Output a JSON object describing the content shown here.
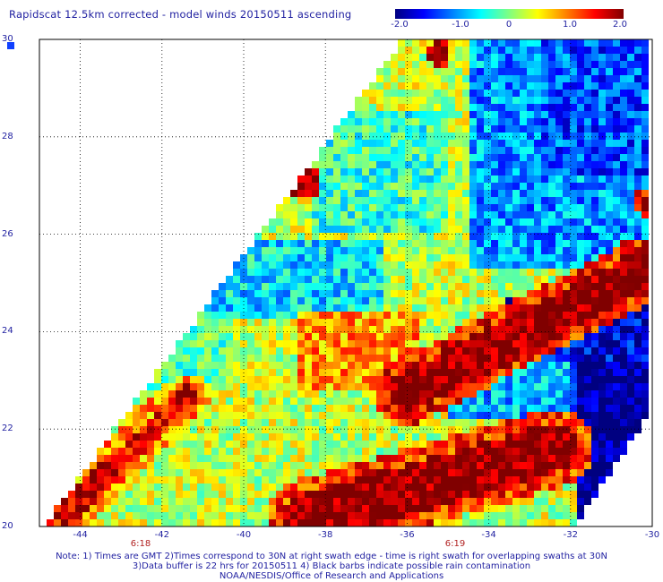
{
  "title": "Rapidscat 12.5km corrected - model winds 20150511 ascending",
  "colorbar": {
    "ticks": [
      "-2.0",
      "-1.0",
      "0",
      "1.0",
      "2.0"
    ],
    "min": -2.0,
    "max": 2.0,
    "colors": [
      "#000080",
      "#0000ff",
      "#0080ff",
      "#00ffff",
      "#80ff80",
      "#ffff00",
      "#ff8000",
      "#ff0000",
      "#800000"
    ]
  },
  "map": {
    "lat_labels": [
      "30",
      "28",
      "26",
      "24",
      "22",
      "20"
    ],
    "lon_labels": [
      "-44",
      "-42",
      "-40",
      "-38",
      "-36",
      "-34",
      "-32",
      "-30"
    ],
    "lat_range": [
      20,
      30
    ],
    "lon_range": [
      -45,
      -30
    ],
    "grid_step_deg": 2
  },
  "time_labels": [
    {
      "text": "6:18"
    },
    {
      "text": "6:19"
    }
  ],
  "notes": [
    "Note: 1) Times are GMT 2)Times correspond to 30N at right swath edge - time is right swath for overlapping swaths at 30N",
    "3)Data buffer is 22 hrs for 20150511 4) Black barbs indicate possible rain contamination",
    "NOAA/NESDIS/Office of Research and Applications"
  ]
}
